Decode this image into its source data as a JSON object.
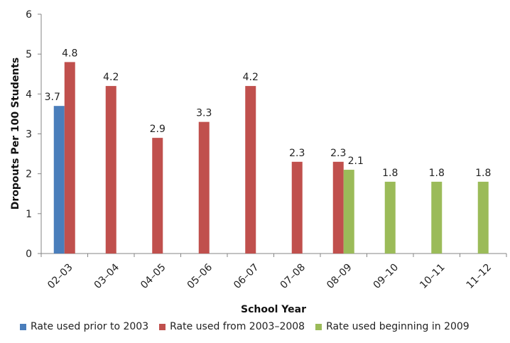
{
  "chart_data": {
    "type": "bar",
    "xlabel": "School Year",
    "ylabel": "Dropouts Per 100 Students",
    "ylim": [
      0,
      6
    ],
    "yticks": [
      0,
      1,
      2,
      3,
      4,
      5,
      6
    ],
    "grid": false,
    "legend_position": "bottom",
    "categories": [
      "02–03",
      "03–04",
      "04–05",
      "05–06",
      "06–07",
      "07–08",
      "08–09",
      "09–10",
      "10–11",
      "11–12"
    ],
    "series": [
      {
        "name": "Rate used prior to 2003",
        "color": "#4a7ebb",
        "values": [
          3.7,
          null,
          null,
          null,
          null,
          null,
          null,
          null,
          null,
          null
        ]
      },
      {
        "name": "Rate used from 2003–2008",
        "color": "#c0504d",
        "values": [
          4.8,
          4.2,
          2.9,
          3.3,
          4.2,
          2.3,
          2.3,
          null,
          null,
          null
        ]
      },
      {
        "name": "Rate used beginning in 2009",
        "color": "#9bbb59",
        "values": [
          null,
          null,
          null,
          null,
          null,
          null,
          2.1,
          1.8,
          1.8,
          1.8
        ]
      }
    ]
  }
}
